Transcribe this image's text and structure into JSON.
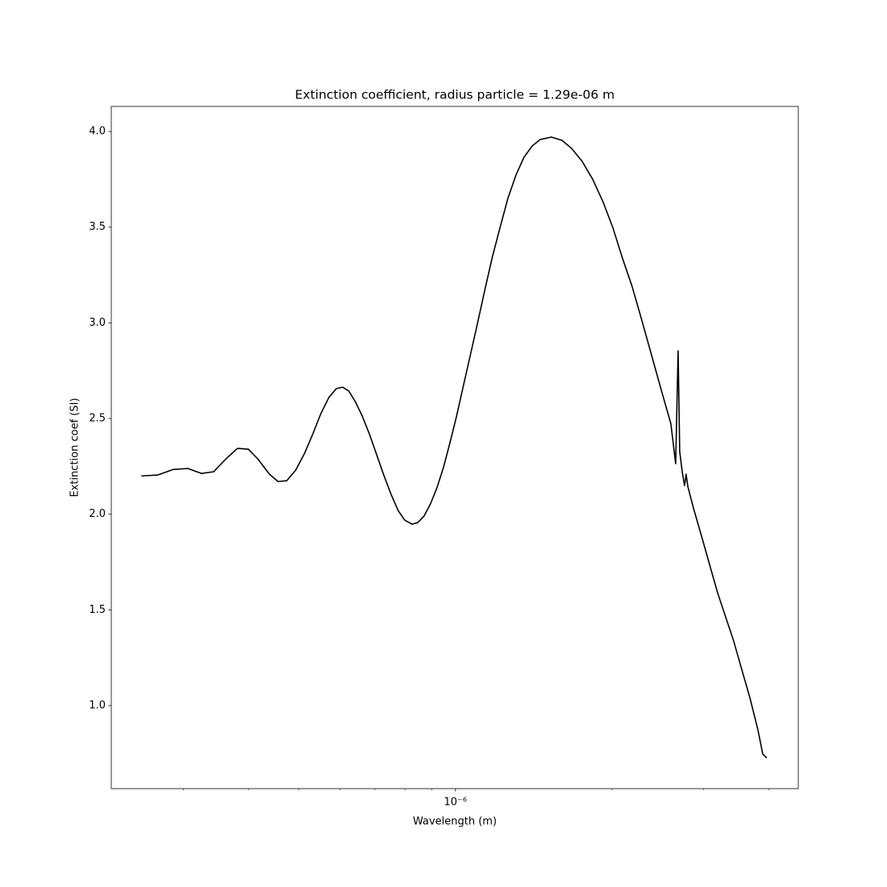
{
  "chart_data": {
    "type": "line",
    "title": "Extinction coefficient, radius particle = 1.29e-06 m",
    "xlabel": "Wavelength (m)",
    "ylabel": "Extinction coef (SI)",
    "xscale": "log",
    "xlim": [
      2.18e-07,
      4.56e-06
    ],
    "ylim": [
      0.566,
      4.131
    ],
    "xticks": [
      {
        "value": 1e-06,
        "label": "10⁻⁶"
      }
    ],
    "xminorticks": [
      3e-07,
      4e-07,
      5e-07,
      6e-07,
      7e-07,
      8e-07,
      9e-07,
      2e-06,
      3e-06,
      4e-06
    ],
    "yticks": [
      {
        "value": 1,
        "label": "1.0"
      },
      {
        "value": 1.5,
        "label": "1.5"
      },
      {
        "value": 2,
        "label": "2.0"
      },
      {
        "value": 2.5,
        "label": "2.5"
      },
      {
        "value": 3,
        "label": "3.0"
      },
      {
        "value": 3.5,
        "label": "3.5"
      },
      {
        "value": 4,
        "label": "4.0"
      }
    ],
    "x": [
      2.49e-07,
      2.68e-07,
      2.87e-07,
      3.06e-07,
      3.25e-07,
      3.43e-07,
      3.62e-07,
      3.81e-07,
      4e-07,
      4.17e-07,
      4.39e-07,
      4.56e-07,
      4.74e-07,
      4.93e-07,
      5.13e-07,
      5.32e-07,
      5.51e-07,
      5.71e-07,
      5.9e-07,
      6.07e-07,
      6.24e-07,
      6.42e-07,
      6.61e-07,
      6.83e-07,
      7.05e-07,
      7.28e-07,
      7.52e-07,
      7.76e-07,
      7.99e-07,
      8.25e-07,
      8.46e-07,
      8.7e-07,
      8.95e-07,
      9.21e-07,
      9.48e-07,
      9.75e-07,
      1.004e-06,
      1.036e-06,
      1.07e-06,
      1.105e-06,
      1.141e-06,
      1.178e-06,
      1.217e-06,
      1.261e-06,
      1.307e-06,
      1.354e-06,
      1.404e-06,
      1.455e-06,
      1.529e-06,
      1.602e-06,
      1.672e-06,
      1.752e-06,
      1.835e-06,
      1.921e-06,
      2.006e-06,
      2.094e-06,
      2.185e-06,
      2.281e-06,
      2.381e-06,
      2.485e-06,
      2.594e-06,
      2.65e-06,
      2.679e-06,
      2.698e-06,
      2.728e-06,
      2.756e-06,
      2.776e-06,
      2.796e-06,
      2.867e-06,
      2.972e-06,
      3.079e-06,
      3.19e-06,
      3.306e-06,
      3.426e-06,
      3.55e-06,
      3.68e-06,
      3.814e-06,
      3.896e-06,
      3.966e-06
    ],
    "series": [
      {
        "color": "#000000",
        "values": [
          2.2,
          2.205,
          2.234,
          2.239,
          2.213,
          2.222,
          2.289,
          2.344,
          2.34,
          2.289,
          2.209,
          2.171,
          2.175,
          2.23,
          2.319,
          2.42,
          2.525,
          2.61,
          2.656,
          2.664,
          2.643,
          2.588,
          2.517,
          2.42,
          2.314,
          2.205,
          2.104,
          2.019,
          1.969,
          1.948,
          1.956,
          1.99,
          2.053,
          2.137,
          2.243,
          2.369,
          2.508,
          2.673,
          2.841,
          3.01,
          3.182,
          3.347,
          3.494,
          3.65,
          3.772,
          3.865,
          3.924,
          3.958,
          3.971,
          3.954,
          3.912,
          3.844,
          3.751,
          3.633,
          3.499,
          3.338,
          3.191,
          3.014,
          2.833,
          2.651,
          2.474,
          2.264,
          2.854,
          2.327,
          2.222,
          2.15,
          2.209,
          2.146,
          2.032,
          1.885,
          1.737,
          1.59,
          1.463,
          1.337,
          1.189,
          1.042,
          0.873,
          0.747,
          0.726
        ]
      }
    ]
  }
}
